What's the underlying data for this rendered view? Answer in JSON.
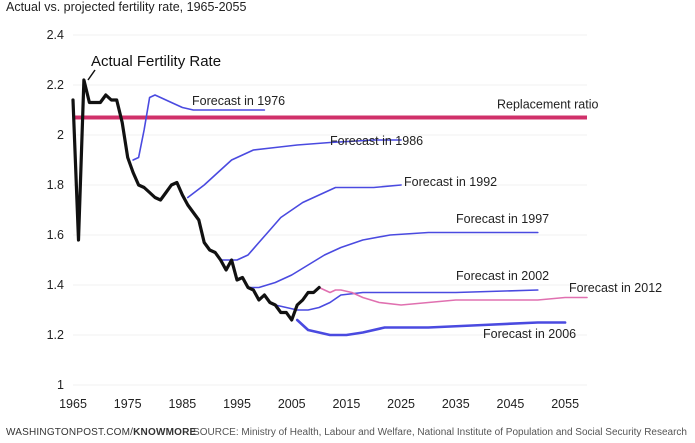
{
  "subtitle": "Actual vs. projected fertility rate, 1965-2055",
  "footer": {
    "brand_left": "WASHINGTONPOST.COM/",
    "brand_right": "KNOWMORE",
    "source": "SOURCE: Ministry of Health, Labour and Welfare, National Institute of Population and Social Security Research"
  },
  "colors": {
    "actual": "#111111",
    "forecast": "#4a4ae0",
    "forecast_2012": "#e070b0",
    "replacement": "#d0306a",
    "grid": "#f0f0f0"
  },
  "chart_data": {
    "type": "line",
    "title": "",
    "xlabel": "",
    "ylabel": "",
    "xlim": [
      1965,
      2059
    ],
    "ylim": [
      1,
      2.4
    ],
    "x_ticks": [
      "1965",
      "1975",
      "1985",
      "1995",
      "2005",
      "2015",
      "2025",
      "2035",
      "2045",
      "2055"
    ],
    "y_ticks": [
      "1",
      "1.2",
      "1.4",
      "1.6",
      "1.8",
      "2",
      "2.2",
      "2.4"
    ],
    "replacement_ratio": {
      "label": "Replacement ratio",
      "value": 2.07
    },
    "actual": {
      "name": "Actual Fertility Rate",
      "points": [
        [
          1965,
          2.14
        ],
        [
          1966,
          1.58
        ],
        [
          1967,
          2.22
        ],
        [
          1968,
          2.13
        ],
        [
          1969,
          2.13
        ],
        [
          1970,
          2.13
        ],
        [
          1971,
          2.16
        ],
        [
          1972,
          2.14
        ],
        [
          1973,
          2.14
        ],
        [
          1974,
          2.05
        ],
        [
          1975,
          1.91
        ],
        [
          1976,
          1.85
        ],
        [
          1977,
          1.8
        ],
        [
          1978,
          1.79
        ],
        [
          1979,
          1.77
        ],
        [
          1980,
          1.75
        ],
        [
          1981,
          1.74
        ],
        [
          1982,
          1.77
        ],
        [
          1983,
          1.8
        ],
        [
          1984,
          1.81
        ],
        [
          1985,
          1.76
        ],
        [
          1986,
          1.72
        ],
        [
          1987,
          1.69
        ],
        [
          1988,
          1.66
        ],
        [
          1989,
          1.57
        ],
        [
          1990,
          1.54
        ],
        [
          1991,
          1.53
        ],
        [
          1992,
          1.5
        ],
        [
          1993,
          1.46
        ],
        [
          1994,
          1.5
        ],
        [
          1995,
          1.42
        ],
        [
          1996,
          1.43
        ],
        [
          1997,
          1.39
        ],
        [
          1998,
          1.38
        ],
        [
          1999,
          1.34
        ],
        [
          2000,
          1.36
        ],
        [
          2001,
          1.33
        ],
        [
          2002,
          1.32
        ],
        [
          2003,
          1.29
        ],
        [
          2004,
          1.29
        ],
        [
          2005,
          1.26
        ],
        [
          2006,
          1.32
        ],
        [
          2007,
          1.34
        ],
        [
          2008,
          1.37
        ],
        [
          2009,
          1.37
        ],
        [
          2010,
          1.39
        ]
      ]
    },
    "series": [
      {
        "name": "Forecast in 1976",
        "label": "Forecast in 1976",
        "points": [
          [
            1976,
            1.9
          ],
          [
            1977,
            1.91
          ],
          [
            1978,
            2.02
          ],
          [
            1979,
            2.15
          ],
          [
            1980,
            2.16
          ],
          [
            1981,
            2.15
          ],
          [
            1983,
            2.13
          ],
          [
            1985,
            2.11
          ],
          [
            1987,
            2.1
          ],
          [
            1990,
            2.1
          ],
          [
            1995,
            2.1
          ],
          [
            2000,
            2.1
          ]
        ]
      },
      {
        "name": "Forecast in 1986",
        "label": "Forecast in 1986",
        "points": [
          [
            1986,
            1.75
          ],
          [
            1989,
            1.8
          ],
          [
            1992,
            1.86
          ],
          [
            1994,
            1.9
          ],
          [
            1996,
            1.92
          ],
          [
            1998,
            1.94
          ],
          [
            2002,
            1.95
          ],
          [
            2006,
            1.96
          ],
          [
            2012,
            1.97
          ],
          [
            2020,
            1.98
          ],
          [
            2025,
            1.98
          ]
        ]
      },
      {
        "name": "Forecast in 1992",
        "label": "Forecast in 1992",
        "points": [
          [
            1992,
            1.5
          ],
          [
            1995,
            1.5
          ],
          [
            1997,
            1.52
          ],
          [
            1999,
            1.57
          ],
          [
            2001,
            1.62
          ],
          [
            2003,
            1.67
          ],
          [
            2007,
            1.73
          ],
          [
            2010,
            1.76
          ],
          [
            2013,
            1.79
          ],
          [
            2020,
            1.79
          ],
          [
            2025,
            1.8
          ]
        ]
      },
      {
        "name": "Forecast in 1997",
        "label": "Forecast in 1997",
        "points": [
          [
            1997,
            1.39
          ],
          [
            1999,
            1.39
          ],
          [
            2002,
            1.41
          ],
          [
            2005,
            1.44
          ],
          [
            2008,
            1.48
          ],
          [
            2011,
            1.52
          ],
          [
            2014,
            1.55
          ],
          [
            2018,
            1.58
          ],
          [
            2023,
            1.6
          ],
          [
            2030,
            1.61
          ],
          [
            2040,
            1.61
          ],
          [
            2050,
            1.61
          ]
        ]
      },
      {
        "name": "Forecast in 2002",
        "label": "Forecast in 2002",
        "points": [
          [
            2002,
            1.32
          ],
          [
            2004,
            1.31
          ],
          [
            2006,
            1.3
          ],
          [
            2008,
            1.3
          ],
          [
            2010,
            1.31
          ],
          [
            2012,
            1.33
          ],
          [
            2014,
            1.36
          ],
          [
            2018,
            1.37
          ],
          [
            2025,
            1.37
          ],
          [
            2035,
            1.37
          ],
          [
            2050,
            1.38
          ]
        ]
      },
      {
        "name": "Forecast in 2006",
        "label": "Forecast in 2006",
        "points": [
          [
            2006,
            1.26
          ],
          [
            2008,
            1.22
          ],
          [
            2010,
            1.21
          ],
          [
            2012,
            1.2
          ],
          [
            2015,
            1.2
          ],
          [
            2018,
            1.21
          ],
          [
            2022,
            1.23
          ],
          [
            2030,
            1.23
          ],
          [
            2040,
            1.24
          ],
          [
            2050,
            1.25
          ],
          [
            2055,
            1.25
          ]
        ]
      },
      {
        "name": "Forecast in 2012",
        "label": "Forecast in 2012",
        "points": [
          [
            2010,
            1.39
          ],
          [
            2011,
            1.38
          ],
          [
            2012,
            1.37
          ],
          [
            2013,
            1.38
          ],
          [
            2014,
            1.38
          ],
          [
            2016,
            1.37
          ],
          [
            2018,
            1.35
          ],
          [
            2021,
            1.33
          ],
          [
            2025,
            1.32
          ],
          [
            2030,
            1.33
          ],
          [
            2035,
            1.34
          ],
          [
            2040,
            1.34
          ],
          [
            2045,
            1.34
          ],
          [
            2050,
            1.34
          ],
          [
            2055,
            1.35
          ],
          [
            2059,
            1.35
          ]
        ]
      }
    ]
  }
}
